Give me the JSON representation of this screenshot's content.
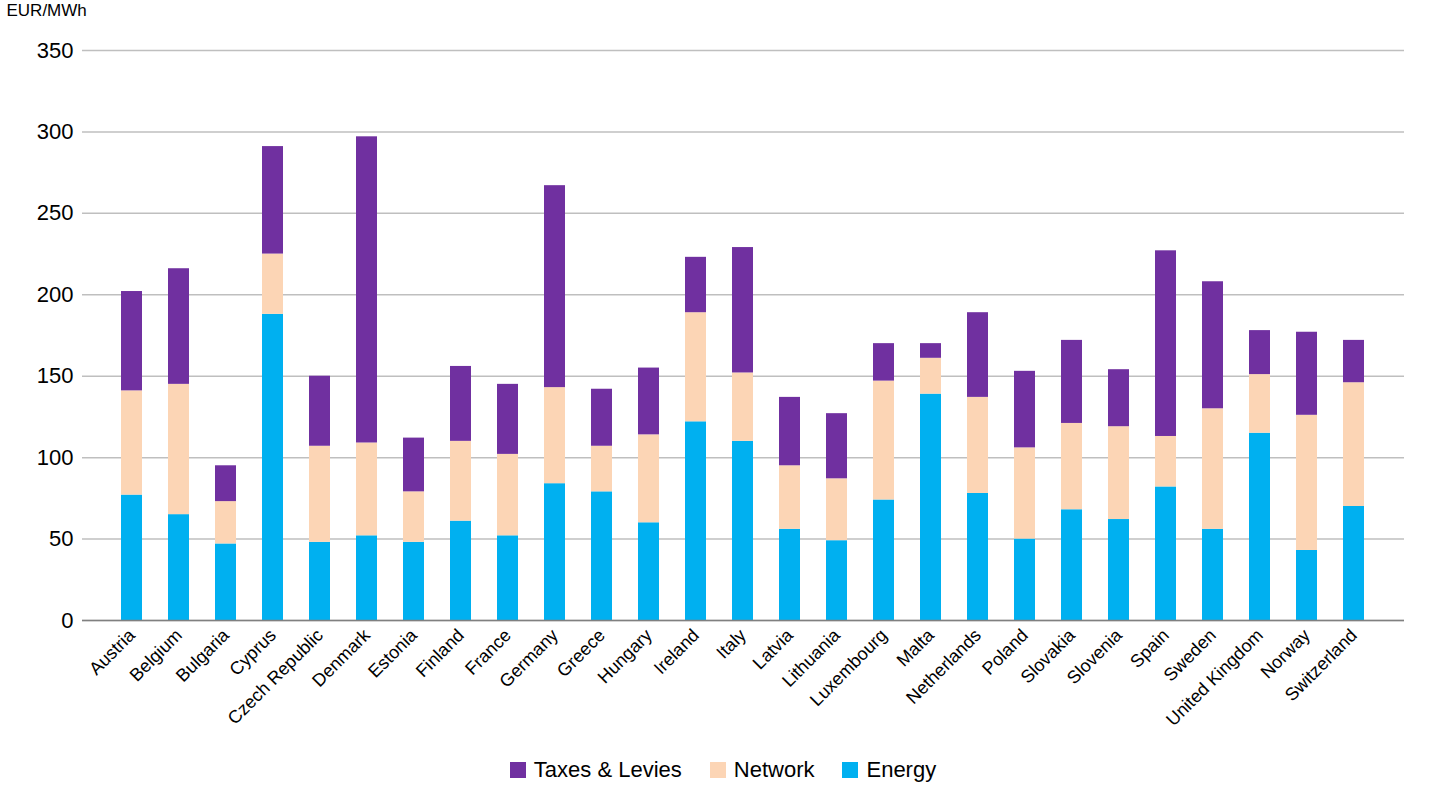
{
  "chart_data": {
    "type": "bar",
    "stacked": true,
    "grid": true,
    "legend": "bottom",
    "y_label": "EUR/MWh",
    "categories": [
      "Austria",
      "Belgium",
      "Bulgaria",
      "Cyprus",
      "Czech Republic",
      "Denmark",
      "Estonia",
      "Finland",
      "France",
      "Germany",
      "Greece",
      "Hungary",
      "Ireland",
      "Italy",
      "Latvia",
      "Lithuania",
      "Luxembourg",
      "Malta",
      "Netherlands",
      "Poland",
      "Slovakia",
      "Slovenia",
      "Spain",
      "Sweden",
      "United Kingdom",
      "Norway",
      "Switzerland"
    ],
    "series": [
      {
        "name": "Taxes & Levies",
        "color": "#7030a0",
        "values": [
          61,
          71,
          22,
          66,
          43,
          188,
          33,
          46,
          43,
          124,
          35,
          41,
          34,
          77,
          42,
          40,
          23,
          9,
          52,
          47,
          51,
          35,
          114,
          78,
          27,
          51,
          26
        ]
      },
      {
        "name": "Network",
        "color": "#fcd5b5",
        "values": [
          64,
          80,
          26,
          37,
          59,
          57,
          31,
          49,
          50,
          59,
          28,
          54,
          67,
          42,
          39,
          38,
          73,
          22,
          59,
          56,
          53,
          57,
          31,
          74,
          36,
          83,
          76
        ]
      },
      {
        "name": "Energy",
        "color": "#00b0f0",
        "values": [
          77,
          65,
          47,
          188,
          48,
          52,
          48,
          61,
          52,
          84,
          79,
          60,
          122,
          110,
          56,
          49,
          74,
          139,
          78,
          50,
          68,
          62,
          82,
          56,
          115,
          43,
          70
        ]
      }
    ],
    "ylim": [
      0,
      350
    ],
    "yticks": [
      0,
      50,
      100,
      150,
      200,
      250,
      300,
      350
    ]
  }
}
